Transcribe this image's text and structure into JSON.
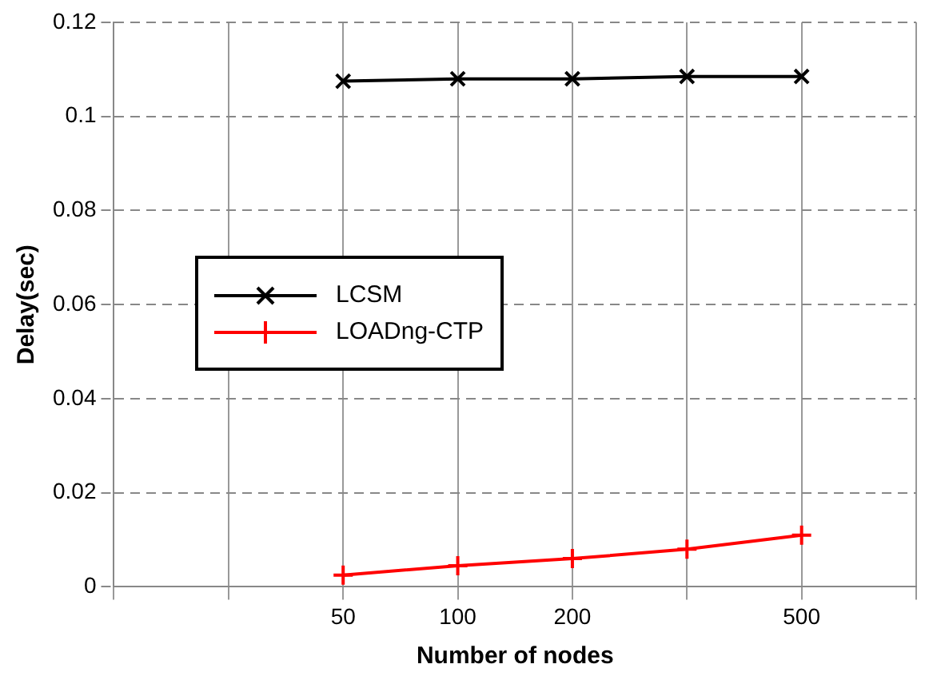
{
  "chart_data": {
    "type": "line",
    "xlabel": "Number of nodes",
    "ylabel": "Delay(sec)",
    "categories": [
      null,
      null,
      "50",
      "100",
      "200",
      null,
      "500",
      null
    ],
    "series": [
      {
        "name": "LCSM",
        "color": "#000000",
        "values": [
          null,
          null,
          0.1075,
          0.108,
          0.108,
          0.1085,
          0.1085,
          null
        ]
      },
      {
        "name": "LOADng-CTP",
        "color": "#ff0000",
        "values": [
          null,
          null,
          0.0025,
          0.0045,
          0.006,
          0.008,
          0.011,
          null
        ]
      }
    ],
    "ylim": [
      0,
      0.12
    ],
    "yticks": [
      0,
      0.02,
      0.04,
      0.06,
      0.08,
      0.1,
      0.12
    ],
    "grid": true,
    "legend": "left",
    "marker": "cross",
    "line_style": "solid"
  }
}
